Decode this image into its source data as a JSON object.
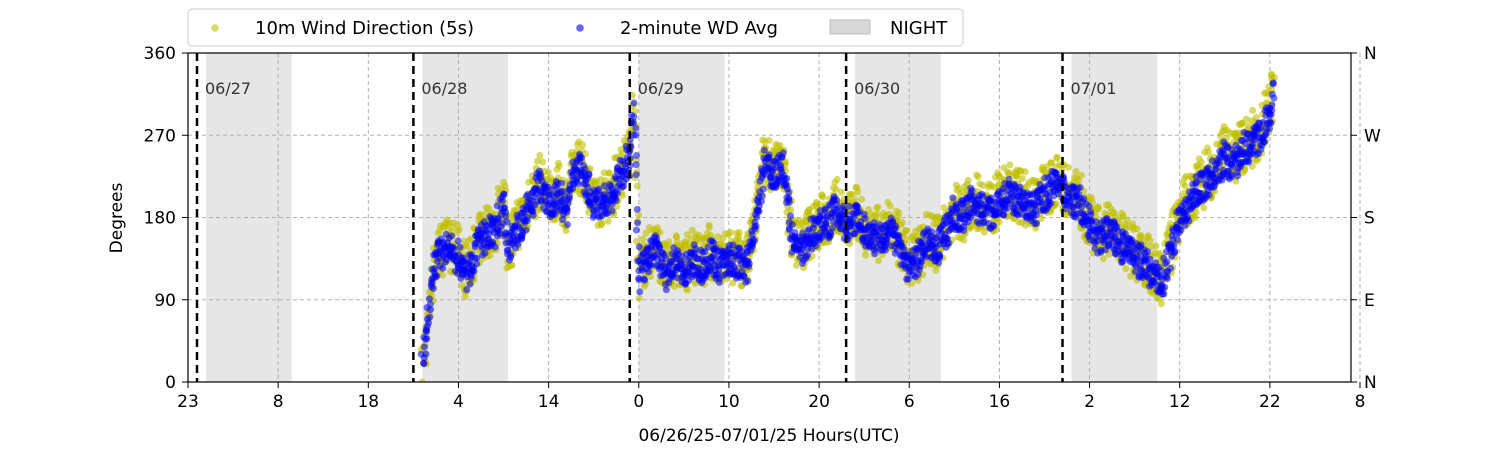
{
  "chart_data": {
    "type": "scatter",
    "xlabel": "06/26/25-07/01/25  Hours(UTC)",
    "ylabel": "Degrees",
    "x_range_hours": [
      0,
      129
    ],
    "ylim": [
      0,
      360
    ],
    "x_ticks": [
      {
        "hour": 0,
        "label": "23"
      },
      {
        "hour": 10,
        "label": "8"
      },
      {
        "hour": 20,
        "label": "18"
      },
      {
        "hour": 30,
        "label": "4"
      },
      {
        "hour": 40,
        "label": "14"
      },
      {
        "hour": 50,
        "label": "0"
      },
      {
        "hour": 60,
        "label": "10"
      },
      {
        "hour": 70,
        "label": "20"
      },
      {
        "hour": 80,
        "label": "6"
      },
      {
        "hour": 90,
        "label": "16"
      },
      {
        "hour": 100,
        "label": "2"
      },
      {
        "hour": 110,
        "label": "12"
      },
      {
        "hour": 120,
        "label": "22"
      },
      {
        "hour": 130,
        "label": "8"
      }
    ],
    "y_ticks": [
      0,
      90,
      180,
      270,
      360
    ],
    "y2_ticks": [
      {
        "value": 0,
        "label": "N"
      },
      {
        "value": 90,
        "label": "E"
      },
      {
        "value": 180,
        "label": "S"
      },
      {
        "value": 270,
        "label": "W"
      },
      {
        "value": 360,
        "label": "N"
      }
    ],
    "grid": true,
    "legend_position": "top",
    "day_markers": [
      {
        "hour": 1,
        "label": "06/27"
      },
      {
        "hour": 25,
        "label": "06/28"
      },
      {
        "hour": 49,
        "label": "06/29"
      },
      {
        "hour": 73,
        "label": "06/30"
      },
      {
        "hour": 97,
        "label": "07/01"
      }
    ],
    "night_spans": [
      [
        2,
        11.5
      ],
      [
        26,
        35.5
      ],
      [
        50,
        59.5
      ],
      [
        74,
        83.5
      ],
      [
        98,
        107.5
      ]
    ],
    "legend": [
      {
        "label": "10m Wind Direction (5s)",
        "kind": "marker",
        "color": "#bfbf00"
      },
      {
        "label": "2-minute WD Avg",
        "kind": "marker",
        "color": "#0000ff"
      },
      {
        "label": "NIGHT",
        "kind": "patch",
        "color": "#d9d9d9"
      }
    ],
    "series": [
      {
        "name": "10m Wind Direction (5s)",
        "color": "#bfbf00",
        "spread": 30,
        "points": [
          [
            26.0,
            10
          ],
          [
            26.5,
            60
          ],
          [
            27.0,
            110
          ],
          [
            27.5,
            140
          ],
          [
            28,
            145
          ],
          [
            29,
            150
          ],
          [
            30,
            140
          ],
          [
            31,
            120
          ],
          [
            32,
            150
          ],
          [
            33,
            165
          ],
          [
            34,
            170
          ],
          [
            35,
            200
          ],
          [
            35.5,
            150
          ],
          [
            36,
            160
          ],
          [
            37,
            180
          ],
          [
            38,
            200
          ],
          [
            39,
            220
          ],
          [
            40,
            200
          ],
          [
            41,
            210
          ],
          [
            42,
            195
          ],
          [
            43,
            240
          ],
          [
            44,
            230
          ],
          [
            45,
            200
          ],
          [
            46,
            200
          ],
          [
            47,
            210
          ],
          [
            48,
            230
          ],
          [
            49,
            250
          ],
          [
            49.5,
            300
          ],
          [
            50,
            120
          ],
          [
            51,
            140
          ],
          [
            52,
            150
          ],
          [
            53,
            120
          ],
          [
            54,
            135
          ],
          [
            55,
            125
          ],
          [
            56,
            140
          ],
          [
            57,
            130
          ],
          [
            58,
            145
          ],
          [
            59,
            130
          ],
          [
            60,
            140
          ],
          [
            61,
            135
          ],
          [
            62,
            130
          ],
          [
            63,
            180
          ],
          [
            64,
            250
          ],
          [
            65,
            230
          ],
          [
            66,
            240
          ],
          [
            67,
            160
          ],
          [
            68,
            150
          ],
          [
            69,
            165
          ],
          [
            70,
            175
          ],
          [
            71,
            180
          ],
          [
            72,
            195
          ],
          [
            73,
            175
          ],
          [
            74,
            185
          ],
          [
            75,
            170
          ],
          [
            76,
            165
          ],
          [
            77,
            160
          ],
          [
            78,
            170
          ],
          [
            79,
            150
          ],
          [
            80,
            130
          ],
          [
            81,
            140
          ],
          [
            82,
            160
          ],
          [
            83,
            150
          ],
          [
            84,
            165
          ],
          [
            85,
            190
          ],
          [
            86,
            185
          ],
          [
            87,
            200
          ],
          [
            88,
            195
          ],
          [
            89,
            190
          ],
          [
            90,
            200
          ],
          [
            91,
            210
          ],
          [
            92,
            205
          ],
          [
            93,
            200
          ],
          [
            94,
            195
          ],
          [
            95,
            210
          ],
          [
            96,
            220
          ],
          [
            97,
            215
          ],
          [
            98,
            205
          ],
          [
            99,
            200
          ],
          [
            100,
            175
          ],
          [
            101,
            160
          ],
          [
            102,
            170
          ],
          [
            103,
            160
          ],
          [
            104,
            150
          ],
          [
            105,
            140
          ],
          [
            106,
            135
          ],
          [
            107,
            125
          ],
          [
            108,
            110
          ],
          [
            109,
            150
          ],
          [
            110,
            185
          ],
          [
            111,
            200
          ],
          [
            112,
            215
          ],
          [
            113,
            225
          ],
          [
            114,
            235
          ],
          [
            115,
            250
          ],
          [
            116,
            240
          ],
          [
            117,
            260
          ],
          [
            118,
            265
          ],
          [
            119,
            275
          ],
          [
            120,
            300
          ],
          [
            120.5,
            320
          ]
        ]
      },
      {
        "name": "2-minute WD Avg",
        "color": "#0000ff",
        "spread": 18,
        "points": [
          [
            26.0,
            15
          ],
          [
            26.5,
            55
          ],
          [
            27.0,
            105
          ],
          [
            27.5,
            135
          ],
          [
            28,
            140
          ],
          [
            29,
            145
          ],
          [
            30,
            135
          ],
          [
            31,
            115
          ],
          [
            32,
            145
          ],
          [
            33,
            160
          ],
          [
            34,
            165
          ],
          [
            35,
            195
          ],
          [
            35.5,
            145
          ],
          [
            36,
            155
          ],
          [
            37,
            175
          ],
          [
            38,
            195
          ],
          [
            39,
            215
          ],
          [
            40,
            195
          ],
          [
            41,
            205
          ],
          [
            42,
            190
          ],
          [
            43,
            235
          ],
          [
            44,
            225
          ],
          [
            45,
            195
          ],
          [
            46,
            195
          ],
          [
            47,
            205
          ],
          [
            48,
            225
          ],
          [
            49,
            245
          ],
          [
            49.5,
            295
          ],
          [
            50,
            115
          ],
          [
            51,
            135
          ],
          [
            52,
            145
          ],
          [
            53,
            115
          ],
          [
            54,
            130
          ],
          [
            55,
            120
          ],
          [
            56,
            135
          ],
          [
            57,
            125
          ],
          [
            58,
            140
          ],
          [
            59,
            125
          ],
          [
            60,
            135
          ],
          [
            61,
            130
          ],
          [
            62,
            125
          ],
          [
            63,
            175
          ],
          [
            64,
            245
          ],
          [
            65,
            225
          ],
          [
            66,
            235
          ],
          [
            67,
            155
          ],
          [
            68,
            145
          ],
          [
            69,
            160
          ],
          [
            70,
            170
          ],
          [
            71,
            175
          ],
          [
            72,
            190
          ],
          [
            73,
            170
          ],
          [
            74,
            180
          ],
          [
            75,
            165
          ],
          [
            76,
            160
          ],
          [
            77,
            155
          ],
          [
            78,
            165
          ],
          [
            79,
            145
          ],
          [
            80,
            125
          ],
          [
            81,
            135
          ],
          [
            82,
            155
          ],
          [
            83,
            145
          ],
          [
            84,
            160
          ],
          [
            85,
            185
          ],
          [
            86,
            180
          ],
          [
            87,
            195
          ],
          [
            88,
            190
          ],
          [
            89,
            185
          ],
          [
            90,
            195
          ],
          [
            91,
            205
          ],
          [
            92,
            200
          ],
          [
            93,
            195
          ],
          [
            94,
            190
          ],
          [
            95,
            205
          ],
          [
            96,
            215
          ],
          [
            97,
            210
          ],
          [
            98,
            200
          ],
          [
            99,
            195
          ],
          [
            100,
            170
          ],
          [
            101,
            155
          ],
          [
            102,
            165
          ],
          [
            103,
            155
          ],
          [
            104,
            145
          ],
          [
            105,
            135
          ],
          [
            106,
            130
          ],
          [
            107,
            120
          ],
          [
            108,
            105
          ],
          [
            109,
            145
          ],
          [
            110,
            180
          ],
          [
            111,
            195
          ],
          [
            112,
            210
          ],
          [
            113,
            220
          ],
          [
            114,
            230
          ],
          [
            115,
            245
          ],
          [
            116,
            235
          ],
          [
            117,
            255
          ],
          [
            118,
            260
          ],
          [
            119,
            270
          ],
          [
            120,
            295
          ],
          [
            120.5,
            315
          ]
        ]
      }
    ]
  }
}
